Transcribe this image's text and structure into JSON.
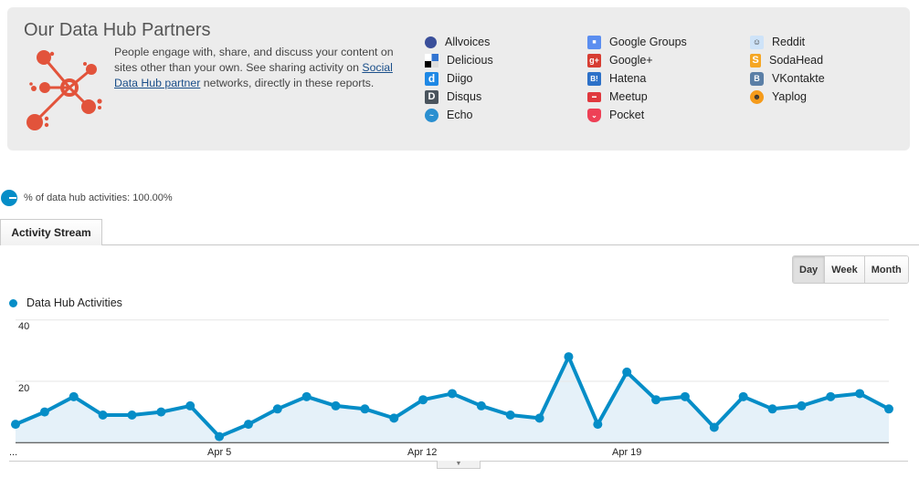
{
  "panel": {
    "title": "Our Data Hub Partners",
    "description_pre": "People engage with, share, and discuss your content on sites other than your own. See sharing activity on ",
    "description_link": "Social Data Hub partner",
    "description_post": " networks, directly in these reports.",
    "icon": "data-hub-network-icon",
    "partners": [
      {
        "name": "Allvoices",
        "icon": "allvoices-icon"
      },
      {
        "name": "Delicious",
        "icon": "delicious-icon"
      },
      {
        "name": "Diigo",
        "icon": "diigo-icon"
      },
      {
        "name": "Disqus",
        "icon": "disqus-icon"
      },
      {
        "name": "Echo",
        "icon": "echo-icon"
      },
      {
        "name": "Google Groups",
        "icon": "google-groups-icon"
      },
      {
        "name": "Google+",
        "icon": "google-plus-icon"
      },
      {
        "name": "Hatena",
        "icon": "hatena-icon"
      },
      {
        "name": "Meetup",
        "icon": "meetup-icon"
      },
      {
        "name": "Pocket",
        "icon": "pocket-icon"
      },
      {
        "name": "Reddit",
        "icon": "reddit-icon"
      },
      {
        "name": "SodaHead",
        "icon": "sodahead-icon"
      },
      {
        "name": "VKontakte",
        "icon": "vkontakte-icon"
      },
      {
        "name": "Yaplog",
        "icon": "yaplog-icon"
      }
    ]
  },
  "summary": {
    "text": "% of data hub activities: 100.00%"
  },
  "tabs": [
    {
      "label": "Activity Stream",
      "active": true
    }
  ],
  "granularity": {
    "options": [
      "Day",
      "Week",
      "Month"
    ],
    "selected": "Day"
  },
  "colors": {
    "series": "#058dc7",
    "fill": "#e5f1f9",
    "brand_icon": "#e2533b"
  },
  "chart_data": {
    "type": "area",
    "title": "",
    "xlabel": "",
    "ylabel": "",
    "legend": [
      "Data Hub Activities"
    ],
    "legend_position": "top-left",
    "grid": true,
    "ylim": [
      0,
      40
    ],
    "yticks": [
      20,
      40
    ],
    "xtick_labels": [
      "...",
      "Apr 5",
      "Apr 12",
      "Apr 19"
    ],
    "x": [
      "Mar 29",
      "Mar 30",
      "Mar 31",
      "Apr 1",
      "Apr 2",
      "Apr 3",
      "Apr 4",
      "Apr 5",
      "Apr 6",
      "Apr 7",
      "Apr 8",
      "Apr 9",
      "Apr 10",
      "Apr 11",
      "Apr 12",
      "Apr 13",
      "Apr 14",
      "Apr 15",
      "Apr 16",
      "Apr 17",
      "Apr 18",
      "Apr 19",
      "Apr 20",
      "Apr 21",
      "Apr 22",
      "Apr 23",
      "Apr 24",
      "Apr 25",
      "Apr 26",
      "Apr 27",
      "Apr 28"
    ],
    "series": [
      {
        "name": "Data Hub Activities",
        "values": [
          6,
          10,
          15,
          9,
          9,
          10,
          12,
          2,
          6,
          11,
          15,
          12,
          11,
          8,
          14,
          16,
          12,
          9,
          8,
          28,
          6,
          23,
          14,
          15,
          5,
          15,
          11,
          12,
          15,
          16,
          11
        ]
      }
    ]
  }
}
